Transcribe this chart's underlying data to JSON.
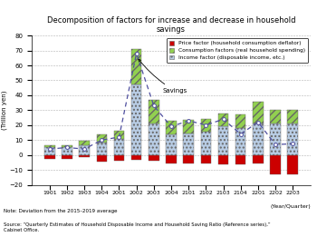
{
  "title": "Decomposition of factors for increase and decrease in household\nsavings",
  "ylabel": "(Trillion yen)",
  "xlabel": "(Year/Quarter)",
  "categories": [
    "1901",
    "1902",
    "1903",
    "1904",
    "2001",
    "2002",
    "2003",
    "2004",
    "2101",
    "2102",
    "2103",
    "2104",
    "2201",
    "2202",
    "2203"
  ],
  "price_factor": [
    -2.5,
    -2.5,
    -1.5,
    -4.5,
    -4.0,
    -3.5,
    -4.0,
    -5.5,
    -5.5,
    -5.5,
    -6.0,
    -6.0,
    -5.5,
    -13.0,
    -13.0
  ],
  "consumption_factor": [
    1.5,
    1.5,
    3.0,
    5.5,
    6.0,
    24.0,
    16.0,
    9.0,
    9.0,
    8.5,
    9.0,
    9.0,
    14.5,
    9.0,
    9.0
  ],
  "income_factor": [
    5.0,
    5.0,
    6.5,
    8.5,
    10.5,
    47.0,
    21.0,
    14.0,
    14.5,
    15.5,
    19.0,
    18.0,
    21.0,
    21.0,
    21.0
  ],
  "savings": [
    4.0,
    5.0,
    4.0,
    10.0,
    12.0,
    68.0,
    33.0,
    19.0,
    23.0,
    20.0,
    24.0,
    14.0,
    22.0,
    7.0,
    7.5
  ],
  "color_price": "#cc0000",
  "color_consumption": "#92d050",
  "color_income": "#b8cce4",
  "color_savings_line": "#4f4f9f",
  "ylim": [
    -20,
    80
  ],
  "yticks": [
    -20,
    -10,
    0,
    10,
    20,
    30,
    40,
    50,
    60,
    70,
    80
  ],
  "note": "Note: Deviation from the 2015–2019 average",
  "source": "Source: “Quarterly Estimates of Household Disposable Income and Household Saving Ratio (Reference series),”\nCabinet Office."
}
